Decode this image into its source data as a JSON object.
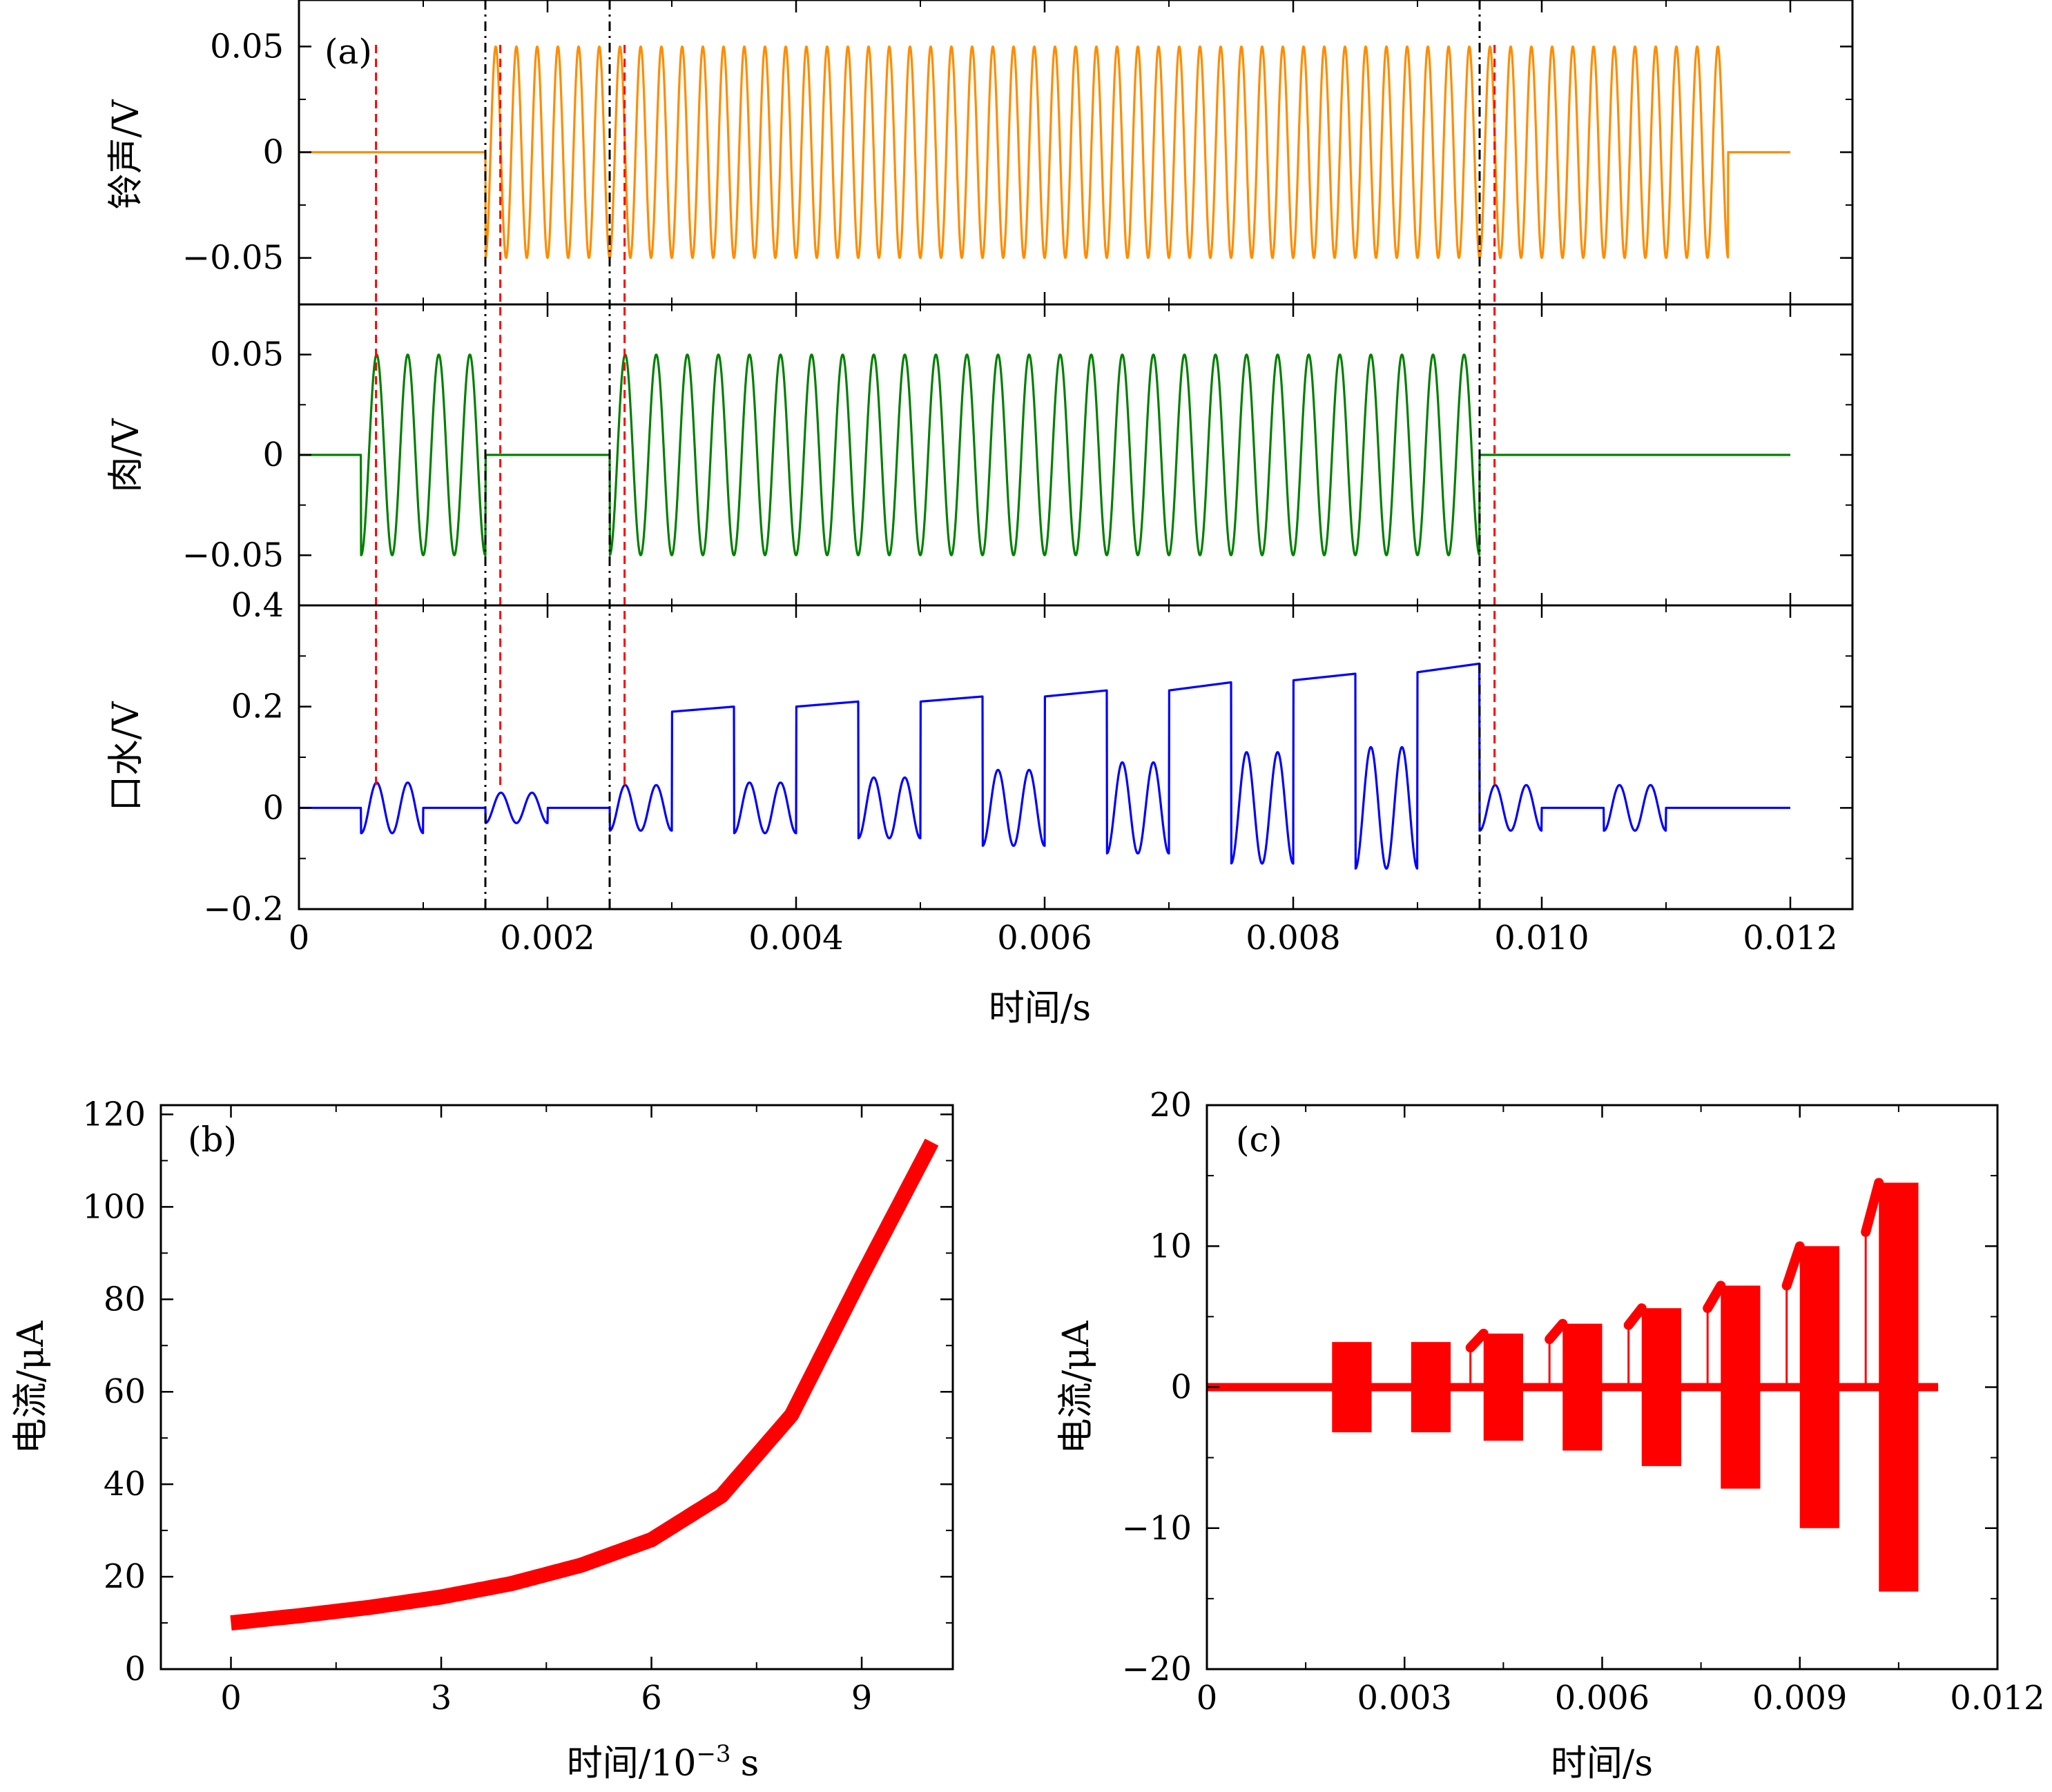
{
  "chart_data": [
    {
      "id": "a",
      "type": "line",
      "panel_label": "(a)",
      "xlabel": "时间/s",
      "xlim": [
        0,
        0.0125
      ],
      "xticks": [
        0,
        0.002,
        0.004,
        0.006,
        0.008,
        0.01,
        0.012
      ],
      "xtick_labels": [
        "0",
        "0.002",
        "0.004",
        "0.006",
        "0.008",
        "0.010",
        "0.012"
      ],
      "vlines_black": [
        0.0015,
        0.0025,
        0.0095
      ],
      "vlines_red": [
        0.00062,
        0.00162,
        0.00262,
        0.00962
      ],
      "series": [
        {
          "name": "铃声",
          "ylabel": "铃声/V",
          "color": "#ff8c00",
          "ylim": [
            -0.072,
            0.072
          ],
          "yticks": [
            -0.05,
            0,
            0.05
          ],
          "ytick_labels": [
            "−0.05",
            "0",
            "0.05"
          ],
          "amplitude": 0.05,
          "frequency_hz": 6000,
          "phase_start": 0.0015,
          "active_intervals": [
            [
              0.0015,
              0.0115
            ]
          ]
        },
        {
          "name": "肉",
          "ylabel": "肉/V",
          "color": "#008000",
          "ylim": [
            -0.075,
            0.075
          ],
          "yticks": [
            -0.05,
            0,
            0.05
          ],
          "ytick_labels": [
            "−0.05",
            "0",
            "0.05"
          ],
          "amplitude": 0.05,
          "frequency_hz": 4000,
          "phase_start": 0.0005,
          "active_intervals": [
            [
              0.0005,
              0.0015
            ],
            [
              0.0025,
              0.0095
            ]
          ]
        },
        {
          "name": "口水",
          "ylabel": "口水/V",
          "color": "#0000ff",
          "ylim": [
            -0.2,
            0.4
          ],
          "yticks": [
            -0.2,
            0,
            0.2,
            0.4
          ],
          "ytick_labels": [
            "−0.2",
            "0",
            "0.2",
            "0.4"
          ],
          "osc_bursts": [
            {
              "t0": 0.0005,
              "t1": 0.001,
              "amp": 0.05
            },
            {
              "t0": 0.0015,
              "t1": 0.002,
              "amp": 0.03
            },
            {
              "t0": 0.0025,
              "t1": 0.003,
              "amp": 0.045
            },
            {
              "t0": 0.0035,
              "t1": 0.004,
              "amp": 0.05
            },
            {
              "t0": 0.0045,
              "t1": 0.005,
              "amp": 0.06
            },
            {
              "t0": 0.0055,
              "t1": 0.006,
              "amp": 0.075
            },
            {
              "t0": 0.0065,
              "t1": 0.007,
              "amp": 0.09
            },
            {
              "t0": 0.0075,
              "t1": 0.008,
              "amp": 0.11
            },
            {
              "t0": 0.0085,
              "t1": 0.009,
              "amp": 0.12
            },
            {
              "t0": 0.0095,
              "t1": 0.01,
              "amp": 0.045
            },
            {
              "t0": 0.0105,
              "t1": 0.011,
              "amp": 0.045
            }
          ],
          "plateaus": [
            {
              "t0": 0.003,
              "t1": 0.0035,
              "v0": 0.19,
              "v1": 0.2
            },
            {
              "t0": 0.004,
              "t1": 0.0045,
              "v0": 0.2,
              "v1": 0.21
            },
            {
              "t0": 0.005,
              "t1": 0.0055,
              "v0": 0.21,
              "v1": 0.22
            },
            {
              "t0": 0.006,
              "t1": 0.0065,
              "v0": 0.22,
              "v1": 0.232
            },
            {
              "t0": 0.007,
              "t1": 0.0075,
              "v0": 0.232,
              "v1": 0.248
            },
            {
              "t0": 0.008,
              "t1": 0.0085,
              "v0": 0.252,
              "v1": 0.265
            },
            {
              "t0": 0.009,
              "t1": 0.0095,
              "v0": 0.268,
              "v1": 0.285
            }
          ]
        }
      ]
    },
    {
      "id": "b",
      "type": "line",
      "panel_label": "(b)",
      "xlabel": "时间/10",
      "xlabel_sup": "−3",
      "xlabel_unit": "s",
      "ylabel": "电流/μA",
      "xlim": [
        -1,
        10.3
      ],
      "ylim": [
        0,
        122
      ],
      "xticks": [
        0,
        3,
        6,
        9
      ],
      "xtick_labels": [
        "0",
        "3",
        "6",
        "9"
      ],
      "yticks": [
        0,
        20,
        40,
        60,
        80,
        100,
        120
      ],
      "ytick_labels": [
        "0",
        "20",
        "40",
        "60",
        "80",
        "100",
        "120"
      ],
      "color": "#ff0000",
      "x": [
        0,
        1,
        2,
        3,
        4,
        5,
        6,
        7,
        8,
        9,
        10
      ],
      "values": [
        10,
        11.6,
        13.4,
        15.6,
        18.5,
        22.5,
        28,
        37.5,
        55,
        85,
        114
      ]
    },
    {
      "id": "c",
      "type": "line",
      "panel_label": "(c)",
      "xlabel": "时间/s",
      "ylabel": "电流/μA",
      "xlim": [
        0,
        0.012
      ],
      "ylim": [
        -20,
        20
      ],
      "xticks": [
        0,
        0.003,
        0.006,
        0.009,
        0.012
      ],
      "xtick_labels": [
        "0",
        "0.003",
        "0.006",
        "0.009",
        "0.012"
      ],
      "yticks": [
        -20,
        -10,
        0,
        10,
        20
      ],
      "ytick_labels": [
        "−20",
        "−10",
        "0",
        "10",
        "20"
      ],
      "color": "#ff0000",
      "baseline": {
        "t0": 0,
        "t1": 0.0111,
        "value": 0
      },
      "bursts": [
        {
          "t0": 0.0019,
          "t1": 0.0025,
          "amp": 3.2
        },
        {
          "t0": 0.0031,
          "t1": 0.0037,
          "amp": 3.2
        },
        {
          "t0": 0.0042,
          "t1": 0.0048,
          "amp": 3.8
        },
        {
          "t0": 0.0054,
          "t1": 0.006,
          "amp": 4.5
        },
        {
          "t0": 0.0066,
          "t1": 0.0072,
          "amp": 5.6
        },
        {
          "t0": 0.0078,
          "t1": 0.0084,
          "amp": 7.2
        },
        {
          "t0": 0.009,
          "t1": 0.0096,
          "amp": 10
        },
        {
          "t0": 0.0102,
          "t1": 0.0108,
          "amp": 14.5
        }
      ],
      "connectors": [
        {
          "t0": 0.004,
          "t1": 0.0042,
          "v0": 2.8,
          "v1": 3.8
        },
        {
          "t0": 0.0052,
          "t1": 0.0054,
          "v0": 3.4,
          "v1": 4.5
        },
        {
          "t0": 0.0064,
          "t1": 0.0066,
          "v0": 4.4,
          "v1": 5.6
        },
        {
          "t0": 0.0076,
          "t1": 0.0078,
          "v0": 5.6,
          "v1": 7.2
        },
        {
          "t0": 0.0088,
          "t1": 0.009,
          "v0": 7.2,
          "v1": 10
        },
        {
          "t0": 0.01,
          "t1": 0.0102,
          "v0": 11,
          "v1": 14.5
        }
      ]
    }
  ]
}
